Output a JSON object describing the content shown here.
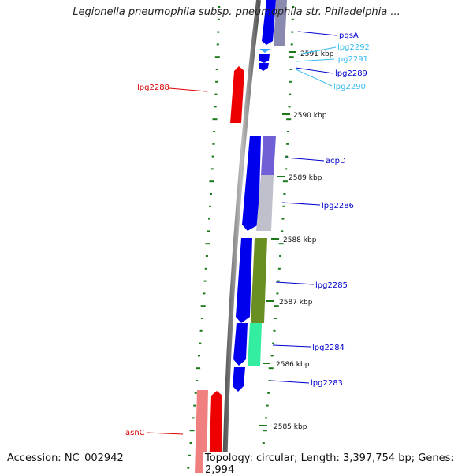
{
  "title": "Legionella pneumophila subsp. pneumophila str. Philadelphia ...",
  "footer": {
    "accession": "Accession: NC_002942",
    "summary": "Topology: circular; Length: 3,397,754 bp; Genes: 2,994"
  },
  "colors": {
    "background": "#ffffff",
    "backbone": "#808080",
    "tick": "#1a7a1a",
    "label_dark_blue": "#0000cc",
    "label_light_blue": "#33bbee",
    "label_red": "#dd0000",
    "gene_blue": "#0000ee",
    "gene_red": "#ee0000",
    "gene_pink": "#f08080",
    "gene_lavender": "#7060d8",
    "gene_silver": "#c0c0cc",
    "gene_olive": "#6b8e23",
    "gene_aqua": "#33eea0",
    "gene_light_blue": "#33aaff"
  },
  "scale_labels": [
    "2591 kbp",
    "2590 kbp",
    "2589 kbp",
    "2588 kbp",
    "2587 kbp",
    "2586 kbp",
    "2585 kbp"
  ],
  "genes": [
    {
      "name": "pgsA",
      "color": "label_dark_blue"
    },
    {
      "name": "lpg2292",
      "color": "label_light_blue"
    },
    {
      "name": "lpg2291",
      "color": "label_light_blue"
    },
    {
      "name": "lpg2289",
      "color": "label_dark_blue"
    },
    {
      "name": "lpg2290",
      "color": "label_light_blue"
    },
    {
      "name": "lpg2288",
      "color": "label_red"
    },
    {
      "name": "acpD",
      "color": "label_dark_blue"
    },
    {
      "name": "lpg2286",
      "color": "label_dark_blue"
    },
    {
      "name": "lpg2285",
      "color": "label_dark_blue"
    },
    {
      "name": "lpg2284",
      "color": "label_dark_blue"
    },
    {
      "name": "lpg2283",
      "color": "label_dark_blue"
    },
    {
      "name": "asnC",
      "color": "label_red"
    }
  ]
}
